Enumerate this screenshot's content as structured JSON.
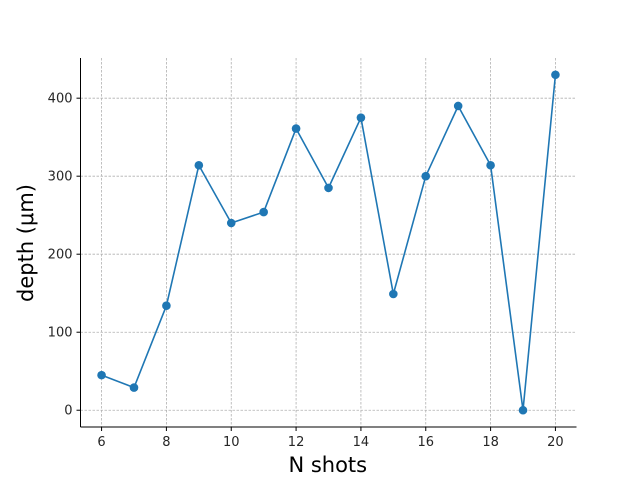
{
  "chart_data": {
    "type": "line",
    "title": "",
    "xlabel": "N shots",
    "ylabel": "depth (μm)",
    "x": [
      6,
      7,
      8,
      9,
      10,
      11,
      12,
      13,
      14,
      15,
      16,
      17,
      18,
      19,
      20
    ],
    "series": [
      {
        "values": [
          45,
          29,
          134,
          314,
          240,
          254,
          361,
          285,
          375,
          149,
          300,
          390,
          314,
          0,
          430
        ],
        "color": "#1f77b4",
        "marker": "circle"
      }
    ],
    "xlim": [
      5.35,
      20.65
    ],
    "ylim": [
      -21.5,
      451.5
    ],
    "xticks": [
      6,
      8,
      10,
      12,
      14,
      16,
      18,
      20
    ],
    "yticks": [
      0,
      100,
      200,
      300,
      400
    ],
    "grid": true,
    "legend": "none"
  }
}
